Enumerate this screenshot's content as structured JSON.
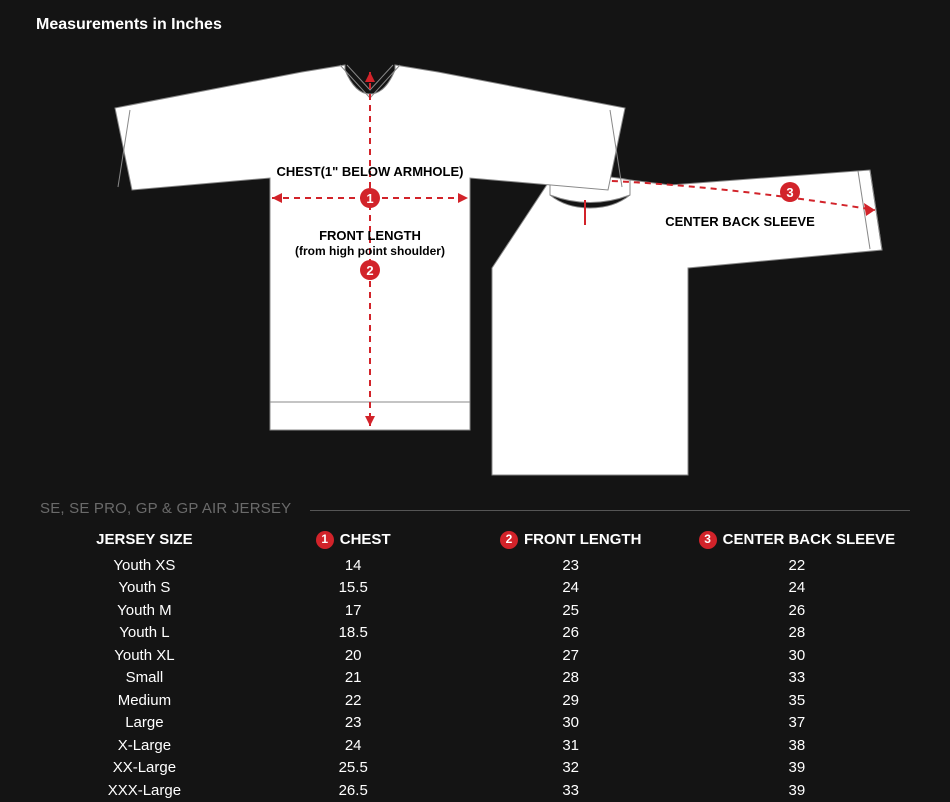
{
  "title": "Measurements in Inches",
  "caption": "SE, SE PRO, GP & GP AIR JERSEY",
  "diagram": {
    "front_jersey": {
      "fill": "#ffffff",
      "stroke": "#888888",
      "stroke_width": 1
    },
    "back_jersey": {
      "fill": "#ffffff",
      "stroke": "#888888",
      "stroke_width": 1
    },
    "accent_color": "#d2232a",
    "labels": {
      "chest": "CHEST(1\" BELOW ARMHOLE)",
      "front_length_line1": "FRONT LENGTH",
      "front_length_line2": "(from high point shoulder)",
      "center_back_sleeve": "CENTER BACK SLEEVE"
    },
    "markers": {
      "m1": "1",
      "m2": "2",
      "m3": "3"
    }
  },
  "table": {
    "columns": {
      "size": "JERSEY SIZE",
      "chest": "CHEST",
      "front": "FRONT LENGTH",
      "sleeve": "CENTER BACK SLEEVE"
    },
    "badges": {
      "chest": "1",
      "front": "2",
      "sleeve": "3"
    },
    "rows": [
      {
        "size": "Youth XS",
        "chest": "14",
        "front": "23",
        "sleeve": "22"
      },
      {
        "size": "Youth S",
        "chest": "15.5",
        "front": "24",
        "sleeve": "24"
      },
      {
        "size": "Youth M",
        "chest": "17",
        "front": "25",
        "sleeve": "26"
      },
      {
        "size": "Youth L",
        "chest": "18.5",
        "front": "26",
        "sleeve": "28"
      },
      {
        "size": "Youth XL",
        "chest": "20",
        "front": "27",
        "sleeve": "30"
      },
      {
        "size": "Small",
        "chest": "21",
        "front": "28",
        "sleeve": "33"
      },
      {
        "size": "Medium",
        "chest": "22",
        "front": "29",
        "sleeve": "35"
      },
      {
        "size": "Large",
        "chest": "23",
        "front": "30",
        "sleeve": "37"
      },
      {
        "size": "X-Large",
        "chest": "24",
        "front": "31",
        "sleeve": "38"
      },
      {
        "size": "XX-Large",
        "chest": "25.5",
        "front": "32",
        "sleeve": "39"
      },
      {
        "size": "XXX-Large",
        "chest": "26.5",
        "front": "33",
        "sleeve": "39"
      }
    ]
  },
  "styles": {
    "background_color": "#141414",
    "text_color": "#ffffff",
    "caption_color": "#6a6a6a",
    "badge_bg": "#d2232a",
    "body_fontsize": 15,
    "title_fontsize": 16
  }
}
